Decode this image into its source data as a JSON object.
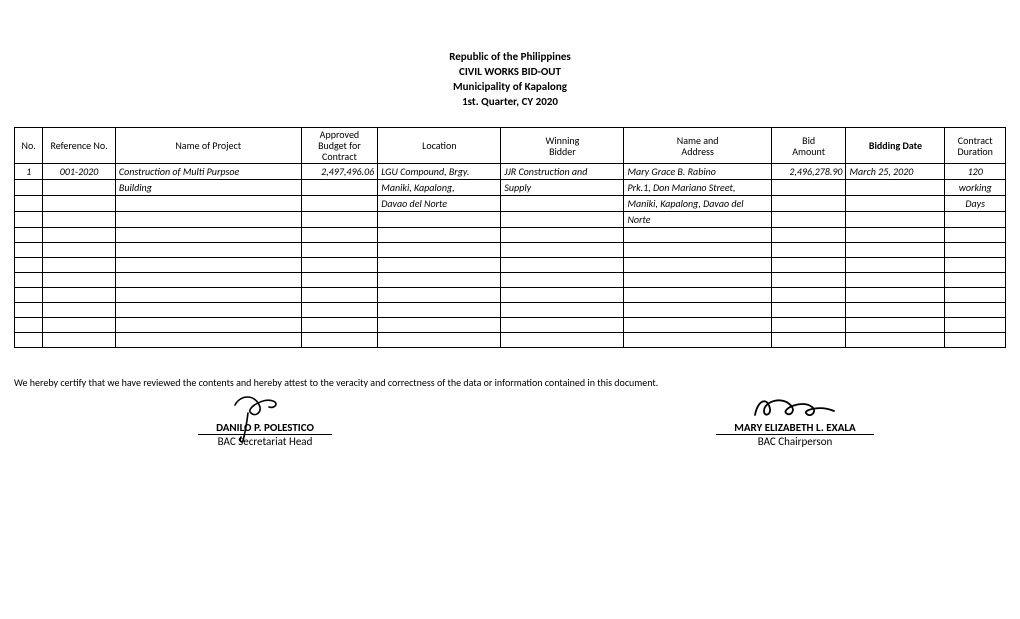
{
  "header": {
    "line1": "Republic of the Philippines",
    "line2": "CIVIL WORKS BID-OUT",
    "line3": "Municipality of Kapalong",
    "line4": "1st. Quarter, CY 2020"
  },
  "table": {
    "columns": [
      {
        "key": "no",
        "label": "No."
      },
      {
        "key": "ref",
        "label": "Reference No."
      },
      {
        "key": "proj",
        "label": "Name of Project"
      },
      {
        "key": "bud",
        "label_line1": "Approved",
        "label_line2": "Budget for",
        "label_line3": "Contract"
      },
      {
        "key": "loc",
        "label": "Location"
      },
      {
        "key": "win",
        "label_line1": "Winning",
        "label_line2": "Bidder"
      },
      {
        "key": "name",
        "label_line1": "Name and",
        "label_line2": "Address"
      },
      {
        "key": "amt",
        "label_line1": "Bid",
        "label_line2": "Amount"
      },
      {
        "key": "date",
        "label": "Bidding Date",
        "bold": true
      },
      {
        "key": "dur",
        "label_line1": "Contract",
        "label_line2": "Duration"
      }
    ],
    "rows": [
      {
        "no": "1",
        "ref": "001-2020",
        "proj": "Construction of Multi Purpsoe",
        "bud": "2,497,496.06",
        "loc": "LGU Compound, Brgy.",
        "win": "JJR Construction and",
        "name": "Mary Grace B. Rabino",
        "amt": "2,496,278.90",
        "date": "March 25, 2020",
        "dur": "120"
      },
      {
        "no": "",
        "ref": "",
        "proj": "Building",
        "bud": "",
        "loc": "Maniki, Kapalong,",
        "win": "Supply",
        "name": "Prk.1, Don Mariano Street,",
        "amt": "",
        "date": "",
        "dur": "working"
      },
      {
        "no": "",
        "ref": "",
        "proj": "",
        "bud": "",
        "loc": "Davao del Norte",
        "win": "",
        "name": "Maniki, Kapalong, Davao del",
        "amt": "",
        "date": "",
        "dur": "Days"
      },
      {
        "no": "",
        "ref": "",
        "proj": "",
        "bud": "",
        "loc": "",
        "win": "",
        "name": "Norte",
        "amt": "",
        "date": "",
        "dur": ""
      },
      {
        "no": "",
        "ref": "",
        "proj": "",
        "bud": "",
        "loc": "",
        "win": "",
        "name": "",
        "amt": "",
        "date": "",
        "dur": ""
      },
      {
        "no": "",
        "ref": "",
        "proj": "",
        "bud": "",
        "loc": "",
        "win": "",
        "name": "",
        "amt": "",
        "date": "",
        "dur": ""
      },
      {
        "no": "",
        "ref": "",
        "proj": "",
        "bud": "",
        "loc": "",
        "win": "",
        "name": "",
        "amt": "",
        "date": "",
        "dur": ""
      },
      {
        "no": "",
        "ref": "",
        "proj": "",
        "bud": "",
        "loc": "",
        "win": "",
        "name": "",
        "amt": "",
        "date": "",
        "dur": ""
      },
      {
        "no": "",
        "ref": "",
        "proj": "",
        "bud": "",
        "loc": "",
        "win": "",
        "name": "",
        "amt": "",
        "date": "",
        "dur": ""
      },
      {
        "no": "",
        "ref": "",
        "proj": "",
        "bud": "",
        "loc": "",
        "win": "",
        "name": "",
        "amt": "",
        "date": "",
        "dur": ""
      },
      {
        "no": "",
        "ref": "",
        "proj": "",
        "bud": "",
        "loc": "",
        "win": "",
        "name": "",
        "amt": "",
        "date": "",
        "dur": ""
      },
      {
        "no": "",
        "ref": "",
        "proj": "",
        "bud": "",
        "loc": "",
        "win": "",
        "name": "",
        "amt": "",
        "date": "",
        "dur": ""
      }
    ],
    "align": {
      "no": "c",
      "ref": "c",
      "proj": "l",
      "bud": "r",
      "loc": "l",
      "win": "l",
      "name": "l",
      "amt": "r",
      "date": "l",
      "dur": "c"
    },
    "italic_rows": [
      0,
      1,
      2,
      3
    ]
  },
  "certification": "We hereby certify that we have reviewed the contents and hereby attest to the veracity and correctness of the data or information contained in this document.",
  "signatories": {
    "sig1": {
      "name": "DANILO P. POLESTICO",
      "title": "BAC Secretariat Head"
    },
    "sig2": {
      "name": "MARY ELIZABETH L. EXALA",
      "title": "BAC Chairperson"
    }
  }
}
